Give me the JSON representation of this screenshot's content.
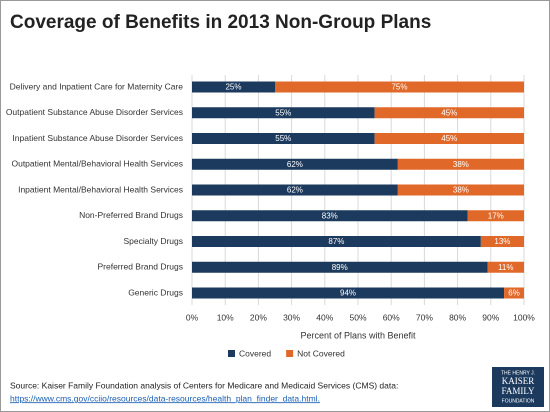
{
  "chart_data": {
    "type": "stacked-barh",
    "title": "Coverage of Benefits in 2013 Non-Group Plans",
    "x_label": "Percent of Plans with Benefit",
    "categories": [
      "Delivery and Inpatient Care for Maternity Care",
      "Outpatient Substance Abuse Disorder Services",
      "Inpatient Substance Abuse Disorder Services",
      "Outpatient Mental/Behavioral Health Services",
      "Inpatient Mental/Behavioral Health Services",
      "Non-Preferred Brand Drugs",
      "Specialty Drugs",
      "Preferred Brand Drugs",
      "Generic Drugs"
    ],
    "series": [
      {
        "name": "Covered",
        "color": "#1c3a5e",
        "values": [
          25,
          55,
          55,
          62,
          62,
          83,
          87,
          89,
          94
        ],
        "value_labels": [
          "25%",
          "55%",
          "55%",
          "62%",
          "62%",
          "83%",
          "87%",
          "89%",
          "94%"
        ]
      },
      {
        "name": "Not Covered",
        "color": "#e0692a",
        "values": [
          75,
          45,
          45,
          38,
          38,
          17,
          13,
          11,
          6
        ],
        "value_labels": [
          "75%",
          "45%",
          "45%",
          "38%",
          "38%",
          "17%",
          "13%",
          "11%",
          "6%"
        ]
      }
    ],
    "xlim": [
      0,
      100
    ],
    "xticks": [
      {
        "value": 0,
        "label": "0%"
      },
      {
        "value": 10,
        "label": "10%"
      },
      {
        "value": 20,
        "label": "20%"
      },
      {
        "value": 30,
        "label": "30%"
      },
      {
        "value": 40,
        "label": "40%"
      },
      {
        "value": 50,
        "label": "50%"
      },
      {
        "value": 60,
        "label": "60%"
      },
      {
        "value": 70,
        "label": "70%"
      },
      {
        "value": 80,
        "label": "80%"
      },
      {
        "value": 90,
        "label": "90%"
      },
      {
        "value": 100,
        "label": "100%"
      }
    ],
    "grid": true,
    "legend": "bottom"
  },
  "source": {
    "text": "Source: Kaiser Family Foundation  analysis of Centers for Medicare and Medicaid Services (CMS) data:",
    "url": "https://www.cms.gov/cciio/resources/data-resources/health_plan_finder_data.html."
  },
  "logo": [
    "THE HENRY J.",
    "KAISER",
    "FAMILY",
    "FOUNDATION"
  ]
}
